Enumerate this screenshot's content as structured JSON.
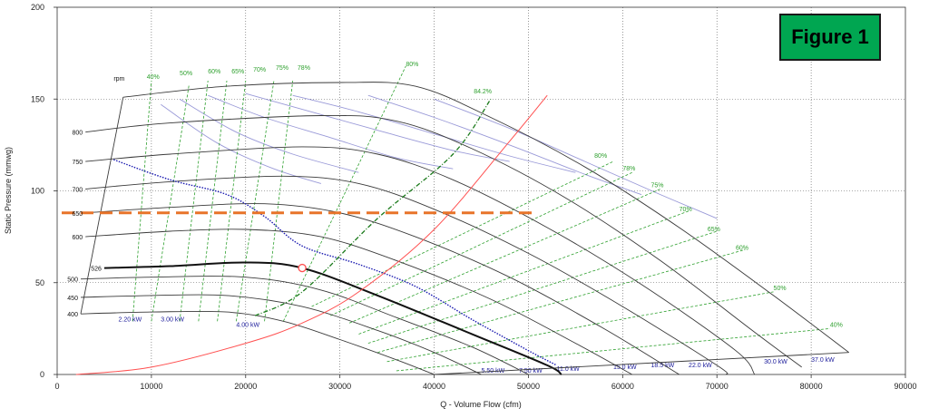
{
  "figure_label": "Figure 1",
  "chart_data": {
    "type": "line",
    "title": "",
    "xlabel": "Q - Volume Flow (cfm)",
    "ylabel": "Static Pressure (mmwg)",
    "xlim": [
      0,
      90000
    ],
    "ylim": [
      0,
      200
    ],
    "x_ticks": [
      0,
      10000,
      20000,
      30000,
      40000,
      50000,
      60000,
      70000,
      80000,
      90000
    ],
    "y_ticks": [
      0,
      50,
      100,
      150,
      200
    ],
    "grid": true,
    "rpm_header": "rpm",
    "speed_curves": [
      {
        "rpm": "400",
        "bold": false,
        "points": [
          [
            2500,
            33
          ],
          [
            10000,
            34
          ],
          [
            18000,
            34
          ],
          [
            24000,
            29
          ],
          [
            30000,
            19
          ],
          [
            36000,
            8
          ],
          [
            40000,
            0
          ]
        ]
      },
      {
        "rpm": "450",
        "bold": false,
        "points": [
          [
            2500,
            42
          ],
          [
            10000,
            43
          ],
          [
            18000,
            43
          ],
          [
            26000,
            37
          ],
          [
            34000,
            24
          ],
          [
            40000,
            12
          ],
          [
            45000,
            0
          ]
        ]
      },
      {
        "rpm": "500",
        "bold": false,
        "points": [
          [
            2500,
            52
          ],
          [
            10000,
            53
          ],
          [
            20000,
            53
          ],
          [
            28000,
            46
          ],
          [
            36000,
            31
          ],
          [
            44000,
            15
          ],
          [
            50000,
            0
          ]
        ]
      },
      {
        "rpm": "526",
        "bold": true,
        "points": [
          [
            5000,
            58
          ],
          [
            12000,
            59
          ],
          [
            20000,
            61
          ],
          [
            26000,
            58
          ],
          [
            34000,
            43
          ],
          [
            44000,
            22
          ],
          [
            52000,
            5
          ],
          [
            53500,
            0
          ]
        ]
      },
      {
        "rpm": "600",
        "bold": false,
        "points": [
          [
            3000,
            75
          ],
          [
            12000,
            78
          ],
          [
            20000,
            79
          ],
          [
            28000,
            75
          ],
          [
            36000,
            62
          ],
          [
            46000,
            41
          ],
          [
            55000,
            17
          ],
          [
            61000,
            0
          ]
        ]
      },
      {
        "rpm": "650",
        "bold": false,
        "points": [
          [
            3000,
            88
          ],
          [
            12000,
            91
          ],
          [
            22000,
            93
          ],
          [
            30000,
            88
          ],
          [
            38000,
            75
          ],
          [
            48000,
            53
          ],
          [
            58000,
            25
          ],
          [
            66000,
            0
          ]
        ]
      },
      {
        "rpm": "700",
        "bold": false,
        "points": [
          [
            3000,
            101
          ],
          [
            12000,
            105
          ],
          [
            24000,
            108
          ],
          [
            32000,
            104
          ],
          [
            40000,
            90
          ],
          [
            50000,
            66
          ],
          [
            60000,
            37
          ],
          [
            70000,
            5
          ],
          [
            71000,
            0
          ]
        ]
      },
      {
        "rpm": "750",
        "bold": false,
        "points": [
          [
            3000,
            116
          ],
          [
            12000,
            120
          ],
          [
            26000,
            124
          ],
          [
            34000,
            120
          ],
          [
            42000,
            106
          ],
          [
            52000,
            80
          ],
          [
            62000,
            49
          ],
          [
            72000,
            13
          ],
          [
            74000,
            0
          ]
        ]
      },
      {
        "rpm": "800",
        "bold": false,
        "points": [
          [
            3000,
            132
          ],
          [
            12000,
            137
          ],
          [
            28000,
            141
          ],
          [
            36000,
            138
          ],
          [
            44000,
            123
          ],
          [
            54000,
            96
          ],
          [
            64000,
            62
          ],
          [
            74000,
            23
          ],
          [
            79000,
            4
          ]
        ]
      },
      {
        "rpm": "",
        "bold": false,
        "points": [
          [
            7000,
            151
          ],
          [
            18000,
            157
          ],
          [
            30000,
            159
          ],
          [
            38000,
            157
          ],
          [
            46000,
            140
          ],
          [
            56000,
            113
          ],
          [
            66000,
            80
          ],
          [
            76000,
            43
          ],
          [
            84000,
            12
          ]
        ]
      }
    ],
    "power_labels": [
      "2.20 kW",
      "3.00 kW",
      "4.00 kW",
      "5.50 kW",
      "7.50 kW",
      "11.0 kW",
      "15.0 kW",
      "18.5 kW",
      "22.0 kW",
      "30.0 kW",
      "37.0 kW"
    ],
    "efficiency_labels_left": [
      "40%",
      "50%",
      "60%",
      "65%",
      "70%",
      "75%",
      "78%",
      "80%",
      "84.2%"
    ],
    "efficiency_labels_right": [
      "80%",
      "78%",
      "75%",
      "70%",
      "65%",
      "60%",
      "50%",
      "40%"
    ],
    "system_curve": {
      "points": [
        [
          2000,
          0
        ],
        [
          10000,
          4
        ],
        [
          20000,
          17
        ],
        [
          26000,
          28
        ],
        [
          32000,
          45
        ],
        [
          40000,
          79
        ],
        [
          48000,
          127
        ],
        [
          52000,
          152
        ]
      ]
    },
    "operating_point": {
      "x": 26000,
      "y": 58
    },
    "target_pressure": {
      "y": 88,
      "x_range": [
        0,
        51000
      ]
    },
    "max_efficiency_line": {
      "label": "84.2%",
      "points": [
        [
          21000,
          32
        ],
        [
          26000,
          45
        ],
        [
          34000,
          85
        ],
        [
          42000,
          120
        ],
        [
          46000,
          150
        ]
      ]
    },
    "colors": {
      "speed": "#3a3a3a",
      "power": "#9a9ad8",
      "efficiency": "#2ea02e",
      "system": "#ff5050",
      "target": "#e8742a",
      "limit": "#1a1ab0",
      "kw_text": "#1a1a9a",
      "badge": "#00a651"
    }
  }
}
